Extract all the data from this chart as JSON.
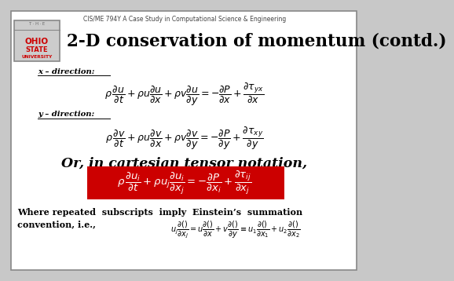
{
  "bg_color": "#c8c8c8",
  "slide_bg": "#ffffff",
  "border_color": "#888888",
  "header_text": "CIS/ME 794Y A Case Study in Computational Science & Engineering",
  "title": "2-D conservation of momentum (contd.)",
  "x_dir_label": "x – direction:",
  "y_dir_label": "y – direction:",
  "tensor_intro": "Or, in cartesian tensor notation,",
  "einstein_text1": "Where repeated  subscripts  imply  Einstein’s  summation",
  "einstein_text2": "convention, i.e.,",
  "red_bg": "#cc0000",
  "title_color": "#000000",
  "text_color": "#000000",
  "logo_red": "#cc0000",
  "logo_gray": "#cccccc",
  "logo_border": "#888888"
}
